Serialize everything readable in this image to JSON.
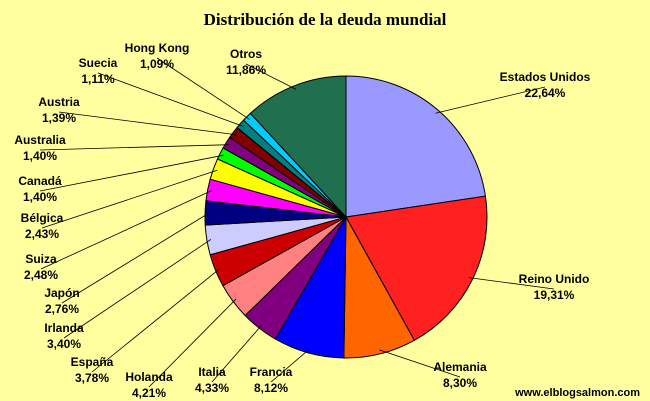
{
  "chart_data": {
    "type": "pie",
    "title": "Distribución de la deuda mundial",
    "unit": "%",
    "slices": [
      {
        "name": "Estados Unidos",
        "value": 22.64,
        "label": "22,64%",
        "color": "#9999ff"
      },
      {
        "name": "Reino Unido",
        "value": 19.31,
        "label": "19,31%",
        "color": "#ff2020"
      },
      {
        "name": "Alemania",
        "value": 8.3,
        "label": "8,30%",
        "color": "#ff6600"
      },
      {
        "name": "Francia",
        "value": 8.12,
        "label": "8,12%",
        "color": "#0000ff"
      },
      {
        "name": "Italia",
        "value": 4.33,
        "label": "4,33%",
        "color": "#800080"
      },
      {
        "name": "Holanda",
        "value": 4.21,
        "label": "4,21%",
        "color": "#ff8080"
      },
      {
        "name": "España",
        "value": 3.78,
        "label": "3,78%",
        "color": "#cc0000"
      },
      {
        "name": "Irlanda",
        "value": 3.4,
        "label": "3,40%",
        "color": "#ccccff"
      },
      {
        "name": "Japón",
        "value": 2.76,
        "label": "2,76%",
        "color": "#000080"
      },
      {
        "name": "Suiza",
        "value": 2.48,
        "label": "2,48%",
        "color": "#ff00ff"
      },
      {
        "name": "Bélgica",
        "value": 2.43,
        "label": "2,43%",
        "color": "#ffff00"
      },
      {
        "name": "Canadá",
        "value": 1.4,
        "label": "1,40%",
        "color": "#00ff00"
      },
      {
        "name": "Australia",
        "value": 1.4,
        "label": "1,40%",
        "color": "#800080"
      },
      {
        "name": "Austria",
        "value": 1.39,
        "label": "1,39%",
        "color": "#800000"
      },
      {
        "name": "Suecia",
        "value": 1.11,
        "label": "1,11%",
        "color": "#008080"
      },
      {
        "name": "Hong Kong",
        "value": 1.09,
        "label": "1,09%",
        "color": "#00ccff"
      },
      {
        "name": "Otros",
        "value": 11.86,
        "label": "11,86%",
        "color": "#207050"
      }
    ],
    "credit": "www.elblogsalmon.com"
  }
}
